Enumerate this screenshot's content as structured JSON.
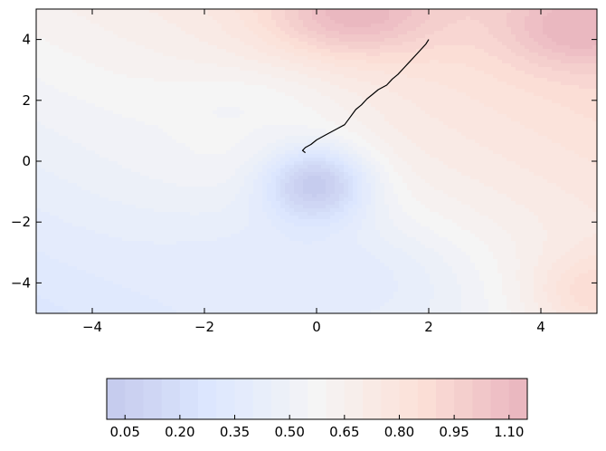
{
  "chart_data": {
    "type": "contour",
    "title": "",
    "xlabel": "",
    "ylabel": "",
    "xlim": [
      -5,
      5
    ],
    "ylim": [
      -5,
      5
    ],
    "x_ticks": [
      -4,
      -2,
      0,
      2,
      4
    ],
    "y_ticks": [
      -4,
      -2,
      0,
      2,
      4
    ],
    "x_tick_labels": [
      "−4",
      "−2",
      "0",
      "2",
      "4"
    ],
    "y_tick_labels": [
      "−4",
      "−2",
      "0",
      "2",
      "4"
    ],
    "colormap": "coolwarm",
    "surface_features": [
      {
        "kind": "minimum",
        "x": 0.0,
        "y": -0.7,
        "value": 0.05
      },
      {
        "kind": "maximum",
        "x": 0.6,
        "y": 4.6,
        "value": 1.15
      },
      {
        "kind": "maximum",
        "x": 4.6,
        "y": 4.3,
        "value": 1.1
      },
      {
        "kind": "maximum",
        "x": 4.9,
        "y": -4.3,
        "value": 1.0
      }
    ],
    "path": {
      "color": "#000000",
      "points": [
        [
          2.0,
          4.0
        ],
        [
          1.95,
          3.85
        ],
        [
          1.85,
          3.65
        ],
        [
          1.75,
          3.45
        ],
        [
          1.65,
          3.25
        ],
        [
          1.55,
          3.05
        ],
        [
          1.45,
          2.85
        ],
        [
          1.35,
          2.7
        ],
        [
          1.25,
          2.5
        ],
        [
          1.1,
          2.35
        ],
        [
          1.0,
          2.2
        ],
        [
          0.9,
          2.05
        ],
        [
          0.8,
          1.85
        ],
        [
          0.7,
          1.7
        ],
        [
          0.6,
          1.45
        ],
        [
          0.5,
          1.2
        ],
        [
          0.3,
          1.0
        ],
        [
          0.15,
          0.85
        ],
        [
          0.0,
          0.7
        ],
        [
          -0.1,
          0.55
        ],
        [
          -0.2,
          0.45
        ],
        [
          -0.25,
          0.35
        ],
        [
          -0.2,
          0.28
        ]
      ]
    },
    "colorbar": {
      "levels": [
        0.0,
        0.05,
        0.1,
        0.15,
        0.2,
        0.25,
        0.3,
        0.35,
        0.4,
        0.45,
        0.5,
        0.55,
        0.6,
        0.65,
        0.7,
        0.75,
        0.8,
        0.85,
        0.9,
        0.95,
        1.0,
        1.05,
        1.1,
        1.15
      ],
      "tick_values": [
        0.05,
        0.2,
        0.35,
        0.5,
        0.65,
        0.8,
        0.95,
        1.1
      ],
      "tick_labels": [
        "0.05",
        "0.20",
        "0.35",
        "0.50",
        "0.65",
        "0.80",
        "0.95",
        "1.10"
      ]
    }
  }
}
